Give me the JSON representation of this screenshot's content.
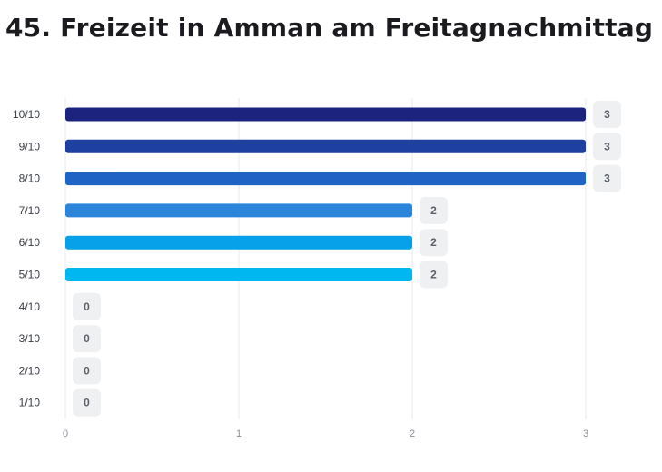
{
  "title": "45. Freizeit in Amman am Freitagnachmittag",
  "chart_data": {
    "type": "bar",
    "orientation": "horizontal",
    "categories": [
      "10/10",
      "9/10",
      "8/10",
      "7/10",
      "6/10",
      "5/10",
      "4/10",
      "3/10",
      "2/10",
      "1/10"
    ],
    "values": [
      3,
      3,
      3,
      2,
      2,
      2,
      0,
      0,
      0,
      0
    ],
    "colors": [
      "#1c237e",
      "#1e40a0",
      "#1f63c5",
      "#2b86db",
      "#06a1e8",
      "#00b8ef",
      "#00b8ef",
      "#00b8ef",
      "#00b8ef",
      "#00b8ef"
    ],
    "xticks": [
      "0",
      "1",
      "2",
      "3"
    ],
    "xlim": [
      0,
      3
    ],
    "grid": true,
    "legend": "none"
  }
}
